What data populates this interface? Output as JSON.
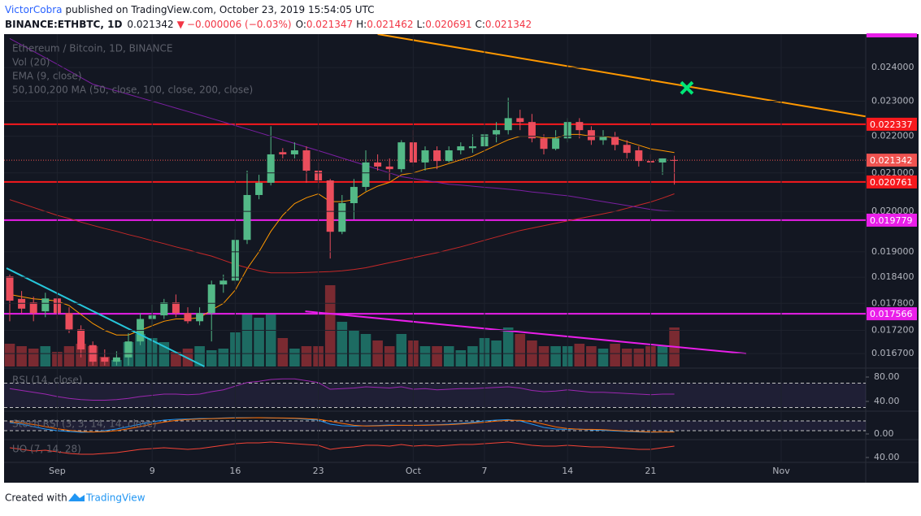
{
  "header": {
    "author": "VictorCobra",
    "published": "published on TradingView.com, October 23, 2019 15:54:05 UTC",
    "symbol": "BINANCE:ETHBTC, 1D",
    "change": "−0.000006 (−0.03%)",
    "ohlc_labels": [
      "O:",
      "H:",
      "L:",
      "C:"
    ]
  },
  "footer": {
    "created": "Created with",
    "brand": "TradingView"
  },
  "chart_data": [
    {
      "type": "candlestick",
      "title": "Ethereum / Bitcoin, 1D, BINANCE",
      "indicators": [
        "Vol (20)",
        "EMA (9, close)",
        "50,100,200 MA (50, close, 100, close, 200, close)"
      ],
      "categories": [
        null,
        null,
        null,
        null,
        "Sep",
        null,
        null,
        null,
        null,
        null,
        null,
        null,
        "9",
        null,
        null,
        null,
        null,
        null,
        null,
        "16",
        null,
        null,
        null,
        null,
        null,
        null,
        "23",
        null,
        null,
        null,
        null,
        null,
        null,
        null,
        "Oct",
        null,
        null,
        null,
        null,
        null,
        "7",
        null,
        null,
        null,
        null,
        null,
        null,
        "14",
        null,
        null,
        null,
        null,
        null,
        null,
        "21",
        null,
        null,
        null,
        null,
        null,
        null,
        null,
        null,
        null,
        null,
        "Nov",
        null,
        null,
        null,
        null,
        null,
        null,
        null
      ],
      "open": [
        0.01842,
        0.0179,
        0.01782,
        0.01762,
        0.01791,
        0.01758,
        0.01722,
        0.01688,
        0.01662,
        0.01653,
        0.01662,
        0.01696,
        0.01745,
        0.01753,
        0.01782,
        0.01758,
        0.0174,
        0.01758,
        0.01823,
        0.01832,
        0.01929,
        0.02042,
        0.02074,
        0.02156,
        0.0215,
        0.02161,
        0.02106,
        0.0208,
        0.01949,
        0.02021,
        0.02063,
        0.02128,
        0.02117,
        0.0211,
        0.02183,
        0.02128,
        0.02161,
        0.02132,
        0.02161,
        0.02167,
        0.02172,
        0.02205,
        0.02217,
        0.02251,
        0.0224,
        0.02194,
        0.02165,
        0.02194,
        0.0224,
        0.02217,
        0.02189,
        0.02198,
        0.02176,
        0.02161,
        0.02132,
        0.02128,
        0.021347,
        null,
        null,
        null,
        null,
        null,
        null,
        null,
        null,
        null,
        null,
        null,
        null,
        null,
        null,
        null,
        null
      ],
      "high": [
        0.01846,
        0.01808,
        0.01795,
        0.01804,
        0.01804,
        0.01771,
        0.01731,
        0.01696,
        0.01679,
        0.01675,
        0.01714,
        0.01758,
        0.01777,
        0.0179,
        0.018,
        0.01771,
        0.01771,
        0.01832,
        0.01846,
        0.01955,
        0.02106,
        0.02095,
        0.02228,
        0.02167,
        0.02183,
        0.02172,
        0.02128,
        0.02084,
        0.02042,
        0.02084,
        0.02161,
        0.0215,
        0.02139,
        0.02189,
        0.02217,
        0.02172,
        0.02172,
        0.02172,
        0.02183,
        0.02205,
        0.02212,
        0.0224,
        0.0231,
        0.02275,
        0.02263,
        0.02205,
        0.02217,
        0.02251,
        0.02251,
        0.02228,
        0.02217,
        0.02212,
        0.02189,
        0.02172,
        0.0215,
        0.02139,
        0.021462,
        null,
        null,
        null,
        null,
        null,
        null,
        null,
        null,
        null,
        null,
        null,
        null,
        null,
        null,
        null,
        null
      ],
      "low": [
        0.0174,
        0.01758,
        0.0174,
        0.01749,
        0.01745,
        0.01714,
        0.01662,
        0.01645,
        0.01645,
        0.01645,
        0.01645,
        0.01688,
        0.01731,
        0.01745,
        0.01749,
        0.01735,
        0.01731,
        0.01696,
        0.01804,
        0.01823,
        0.01919,
        0.02031,
        0.02067,
        0.02139,
        0.02139,
        0.02074,
        0.02059,
        0.01884,
        0.01943,
        0.0198,
        0.02052,
        0.02106,
        0.0208,
        0.02102,
        0.02117,
        0.02106,
        0.0211,
        0.02128,
        0.0215,
        0.02154,
        0.02161,
        0.02183,
        0.02205,
        0.02217,
        0.02183,
        0.0215,
        0.02161,
        0.02183,
        0.02194,
        0.02176,
        0.02176,
        0.02161,
        0.02139,
        0.02117,
        0.02106,
        0.02095,
        0.020691,
        null,
        null,
        null,
        null,
        null,
        null,
        null,
        null,
        null,
        null,
        null,
        null,
        null,
        null,
        null,
        null
      ],
      "close": [
        0.01786,
        0.01768,
        0.01758,
        0.01791,
        0.01758,
        0.01722,
        0.01679,
        0.01653,
        0.01653,
        0.01662,
        0.01696,
        0.01745,
        0.01753,
        0.01782,
        0.01758,
        0.0174,
        0.01758,
        0.01823,
        0.01832,
        0.01929,
        0.02042,
        0.02074,
        0.0215,
        0.0215,
        0.02161,
        0.02106,
        0.0208,
        0.01949,
        0.02021,
        0.02063,
        0.02128,
        0.02117,
        0.0211,
        0.02183,
        0.02128,
        0.02161,
        0.02132,
        0.02161,
        0.02172,
        0.02172,
        0.02205,
        0.02217,
        0.02251,
        0.0224,
        0.02194,
        0.02165,
        0.02194,
        0.0224,
        0.02217,
        0.02189,
        0.02198,
        0.02176,
        0.02154,
        0.02132,
        0.02128,
        0.02139,
        0.021342,
        null,
        null,
        null,
        null,
        null,
        null,
        null,
        null,
        null,
        null,
        null,
        null,
        null,
        null,
        null,
        null
      ],
      "volume": [
        28,
        25,
        22,
        25,
        18,
        25,
        28,
        25,
        12,
        8,
        30,
        40,
        35,
        30,
        18,
        22,
        25,
        20,
        22,
        42,
        65,
        60,
        65,
        35,
        22,
        25,
        25,
        100,
        55,
        45,
        40,
        32,
        25,
        40,
        32,
        25,
        25,
        25,
        20,
        25,
        35,
        32,
        48,
        40,
        32,
        25,
        25,
        25,
        28,
        25,
        22,
        28,
        22,
        22,
        25,
        25,
        48,
        null,
        null,
        null,
        null,
        null,
        null,
        null,
        null,
        null,
        null,
        null,
        null,
        null,
        null,
        null,
        null
      ],
      "up_color": "#53b987",
      "down_color": "#eb4d5c",
      "volume_up_color": "#1d6b62",
      "volume_down_color": "#7a2a31",
      "series": [
        {
          "color": "#ff9800",
          "values": [
            0.018,
            0.01795,
            0.0179,
            0.01788,
            0.01785,
            0.01775,
            0.01755,
            0.01735,
            0.0172,
            0.0171,
            0.0171,
            0.0172,
            0.0173,
            0.0174,
            0.01745,
            0.01745,
            0.01748,
            0.01765,
            0.0178,
            0.0181,
            0.0186,
            0.019,
            0.0195,
            0.0199,
            0.0202,
            0.02035,
            0.02045,
            0.02025,
            0.02025,
            0.0203,
            0.0205,
            0.02065,
            0.02075,
            0.02095,
            0.021,
            0.0211,
            0.02115,
            0.02125,
            0.02135,
            0.02145,
            0.0216,
            0.02175,
            0.0219,
            0.022,
            0.022,
            0.02195,
            0.02195,
            0.02205,
            0.02205,
            0.022,
            0.022,
            0.02195,
            0.02185,
            0.02175,
            0.02165,
            0.0216,
            0.02155,
            null,
            null,
            null,
            null,
            null,
            null,
            null,
            null,
            null,
            null,
            null,
            null,
            null,
            null,
            null,
            null
          ]
        },
        {
          "color": "#c62828",
          "values": [
            0.0203,
            0.0202,
            0.0201,
            0.02,
            0.0199,
            0.01982,
            0.01973,
            0.01965,
            0.01957,
            0.0195,
            0.01942,
            0.01935,
            0.01927,
            0.0192,
            0.01912,
            0.01905,
            0.01897,
            0.0189,
            0.0188,
            0.0187,
            0.01862,
            0.01855,
            0.0185,
            0.0185,
            0.0185,
            0.01851,
            0.01852,
            0.01853,
            0.01855,
            0.01858,
            0.01862,
            0.01868,
            0.01874,
            0.0188,
            0.01886,
            0.01892,
            0.01898,
            0.01905,
            0.01912,
            0.0192,
            0.01928,
            0.01936,
            0.01944,
            0.01952,
            0.01958,
            0.01964,
            0.0197,
            0.01976,
            0.01982,
            0.01988,
            0.01994,
            0.02,
            0.02008,
            0.02016,
            0.02024,
            0.02034,
            0.02045,
            null,
            null,
            null,
            null,
            null,
            null,
            null,
            null,
            null,
            null,
            null,
            null,
            null,
            null,
            null,
            null
          ]
        },
        {
          "color": "#7b1fa2",
          "values": [
            0.0249,
            0.0247,
            0.0245,
            0.0243,
            0.0241,
            0.0239,
            0.0237,
            0.0235,
            0.0234,
            0.0233,
            0.0232,
            0.0231,
            0.023,
            0.0229,
            0.0228,
            0.0227,
            0.0226,
            0.0225,
            0.0224,
            0.0223,
            0.0222,
            0.0221,
            0.022,
            0.0219,
            0.0218,
            0.0217,
            0.0216,
            0.0215,
            0.0214,
            0.0213,
            0.0212,
            0.0211,
            0.021,
            0.0209,
            0.02085,
            0.0208,
            0.02075,
            0.0207,
            0.02068,
            0.02065,
            0.02062,
            0.0206,
            0.02057,
            0.02054,
            0.0205,
            0.02047,
            0.02043,
            0.0204,
            0.02035,
            0.0203,
            0.02025,
            0.0202,
            0.02015,
            0.0201,
            0.02005,
            0.02002,
            0.02,
            null,
            null,
            null,
            null,
            null,
            null,
            null,
            null,
            null,
            null,
            null,
            null,
            null,
            null,
            null,
            null
          ]
        }
      ],
      "ylim": [
        0.01643,
        0.02504
      ],
      "log": true,
      "grid": true,
      "yticks": [
        {
          "value": 0.024,
          "label": "0.024000"
        },
        {
          "value": 0.023,
          "label": "0.023000"
        },
        {
          "value": 0.022,
          "label": "0.022000"
        },
        {
          "value": 0.021,
          "label": "0.021000"
        },
        {
          "value": 0.02,
          "label": "0.020000"
        },
        {
          "value": 0.019,
          "label": "0.019000"
        },
        {
          "value": 0.0184,
          "label": "0.018400"
        },
        {
          "value": 0.0178,
          "label": "0.017800"
        },
        {
          "value": 0.0172,
          "label": "0.017200"
        },
        {
          "value": 0.0167,
          "label": "0.016700"
        }
      ],
      "levels": [
        {
          "value": 0.022337,
          "color": "#f7191d"
        },
        {
          "value": 0.020761,
          "color": "#f7191d"
        },
        {
          "value": 0.019779,
          "color": "#e91ee9"
        },
        {
          "value": 0.017566,
          "color": "#e91ee9"
        }
      ],
      "last_color": "#ef5350",
      "trendlines": [
        {
          "color": "#ff9800",
          "x": [
            31.0,
            72.1
          ],
          "y": [
            0.02504,
            0.02256
          ]
        },
        {
          "color": "#26c6da",
          "x": [
            -0.27,
            16.4
          ],
          "y": [
            0.01861,
            0.01643
          ]
        },
        {
          "color": "#e91ee9",
          "x": [
            24.9,
            62.05
          ],
          "y": [
            0.01762,
            0.0167
          ]
        }
      ],
      "marker": {
        "color": "#00e676",
        "x": 57.05,
        "y": 0.02339
      }
    },
    {
      "type": "line",
      "title": "RSI (14, close)",
      "band": [
        30,
        70
      ],
      "band_color": "#7e57c2",
      "series": [
        {
          "color": "#9c27b0",
          "values": [
            61,
            58,
            55,
            52,
            48,
            45,
            43,
            42,
            42,
            43,
            45,
            48,
            50,
            52,
            52,
            51,
            52,
            56,
            59,
            65,
            71,
            73,
            76,
            77,
            77,
            74,
            71,
            60,
            61,
            62,
            64,
            63,
            62,
            64,
            60,
            61,
            59,
            60,
            61,
            61,
            62,
            63,
            64,
            62,
            58,
            56,
            57,
            59,
            57,
            55,
            55,
            54,
            53,
            52,
            51,
            52,
            52
          ]
        }
      ],
      "ylim": [
        25.3,
        92
      ],
      "yticks": [
        {
          "value": 80,
          "label": "80.00"
        },
        {
          "value": 40,
          "label": "40.00"
        }
      ]
    },
    {
      "type": "line",
      "title": "Stoch RSI (3, 3, 14, 14, close)",
      "band": [
        20,
        80
      ],
      "band_color": "#7e57c2",
      "series": [
        {
          "color": "#2196f3",
          "values": [
            70,
            60,
            45,
            30,
            20,
            15,
            10,
            12,
            20,
            30,
            45,
            60,
            75,
            85,
            90,
            92,
            95,
            95,
            98,
            100,
            100,
            100,
            98,
            97,
            95,
            90,
            85,
            60,
            50,
            48,
            50,
            52,
            55,
            53,
            52,
            55,
            57,
            60,
            65,
            72,
            80,
            85,
            88,
            80,
            60,
            40,
            30,
            28,
            30,
            25,
            22,
            18,
            15,
            12,
            10,
            12,
            15
          ]
        },
        {
          "color": "#ff6d00",
          "values": [
            75,
            68,
            58,
            45,
            32,
            22,
            15,
            12,
            14,
            20,
            32,
            45,
            60,
            73,
            83,
            89,
            92,
            94,
            96,
            98,
            99,
            100,
            99,
            98,
            97,
            94,
            90,
            78,
            65,
            53,
            49,
            50,
            52,
            53,
            53,
            53,
            55,
            57,
            61,
            66,
            72,
            79,
            84,
            84,
            76,
            60,
            43,
            33,
            29,
            28,
            26,
            22,
            18,
            15,
            12,
            12,
            12
          ]
        }
      ],
      "ylim": [
        -30,
        135
      ],
      "yticks": [
        {
          "value": 0,
          "label": "0.00"
        }
      ]
    },
    {
      "type": "line",
      "title": "UO (7, 14, 28)",
      "series": [
        {
          "color": "#f44336",
          "values": [
            52,
            50,
            48,
            49,
            47,
            45,
            44,
            44,
            45,
            46,
            48,
            50,
            51,
            52,
            51,
            50,
            51,
            53,
            55,
            57,
            58,
            58,
            59,
            58,
            57,
            56,
            55,
            50,
            52,
            53,
            55,
            55,
            54,
            56,
            54,
            55,
            54,
            55,
            56,
            56,
            57,
            58,
            59,
            57,
            55,
            54,
            54,
            55,
            54,
            53,
            53,
            52,
            51,
            50,
            50,
            52,
            54
          ]
        }
      ],
      "ylim": [
        35,
        61
      ],
      "yticks": [
        {
          "value": 40,
          "label": "40.00"
        }
      ]
    }
  ]
}
